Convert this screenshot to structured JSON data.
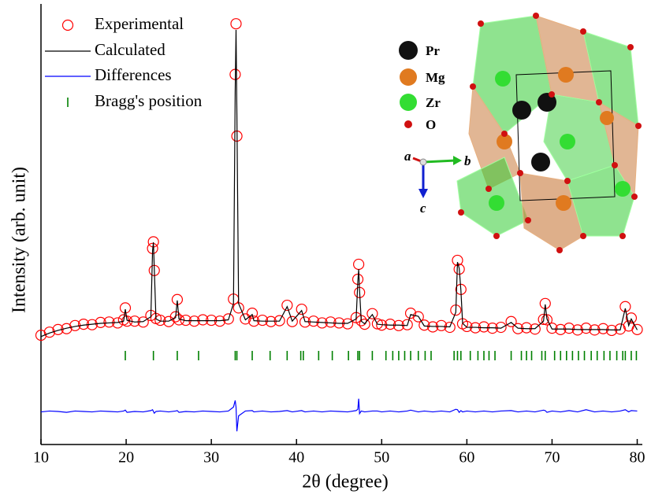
{
  "chart_data": {
    "type": "xrd",
    "xlabel": "2θ (degree)",
    "ylabel": "Intensity (arb. unit)",
    "xlim": [
      10,
      80.6
    ],
    "ylim": [
      0,
      100
    ],
    "xticks": [
      10,
      20,
      30,
      40,
      50,
      60,
      70,
      80
    ],
    "legend": "upper left",
    "x": [
      10,
      11,
      12,
      13,
      14,
      15,
      16,
      17,
      18,
      19,
      19.7,
      19.9,
      20.1,
      21,
      22,
      22.9,
      23.1,
      23.2,
      23.3,
      23.5,
      24,
      25,
      25.8,
      26.0,
      26.2,
      27,
      28,
      29,
      30,
      31,
      32,
      32.6,
      32.8,
      32.9,
      33.0,
      33.2,
      34,
      34.8,
      35,
      36,
      37,
      38,
      38.9,
      39.5,
      40.6,
      41,
      42,
      43,
      44,
      45,
      46,
      47.0,
      47.2,
      47.3,
      47.4,
      47.6,
      48,
      48.9,
      49.5,
      50,
      51,
      52,
      53,
      53.4,
      54.3,
      55,
      56,
      57,
      58,
      58.7,
      58.9,
      59.1,
      59.3,
      59.5,
      60,
      61,
      62,
      63,
      64,
      65.2,
      66,
      67,
      68,
      69.0,
      69.2,
      69.4,
      70,
      71,
      72,
      73,
      74,
      75,
      76,
      77,
      78,
      78.6,
      79.0,
      79.3,
      80
    ],
    "series": [
      {
        "name": "Experimental",
        "color": "#ff0000",
        "style": "circle",
        "values": [
          24.8,
          25.5,
          26.1,
          26.3,
          27.0,
          27.3,
          27.2,
          27.7,
          27.8,
          27.6,
          28.3,
          31.0,
          28.0,
          28.0,
          27.8,
          29.3,
          44.5,
          46.0,
          39.5,
          28.6,
          28.2,
          27.9,
          29.0,
          32.9,
          28.3,
          28.2,
          28.0,
          28.3,
          28.2,
          28.0,
          28.5,
          33.0,
          84.0,
          95.5,
          70.0,
          31.0,
          28.5,
          29.8,
          28.0,
          28.2,
          27.9,
          28.1,
          31.6,
          27.9,
          30.7,
          27.8,
          28.0,
          27.6,
          27.8,
          27.6,
          27.4,
          28.8,
          37.5,
          40.9,
          34.5,
          28.1,
          27.3,
          29.7,
          27.4,
          27.1,
          27.3,
          27.0,
          27.2,
          29.8,
          29.0,
          27.1,
          26.7,
          27.0,
          26.6,
          30.5,
          41.8,
          39.8,
          35.2,
          27.4,
          26.8,
          26.5,
          26.7,
          26.4,
          26.6,
          27.9,
          26.3,
          26.5,
          26.2,
          28.4,
          32.0,
          28.3,
          26.4,
          26.1,
          26.4,
          26.0,
          26.4,
          26.0,
          26.3,
          25.9,
          26.2,
          31.3,
          26.9,
          28.7,
          26.1
        ]
      },
      {
        "name": "Calculated",
        "color": "#000000",
        "style": "line",
        "values": [
          24.5,
          25.3,
          25.9,
          26.4,
          26.8,
          27.1,
          27.3,
          27.5,
          27.6,
          27.7,
          28.0,
          30.7,
          28.2,
          27.8,
          27.9,
          29.0,
          44.0,
          45.9,
          40.0,
          28.5,
          28.0,
          28.0,
          28.8,
          32.7,
          28.5,
          28.1,
          28.1,
          28.1,
          28.1,
          28.1,
          28.3,
          32.0,
          80.0,
          94.1,
          75.0,
          32.0,
          28.3,
          29.5,
          28.1,
          28.0,
          28.0,
          28.0,
          31.3,
          28.0,
          30.4,
          27.9,
          27.8,
          27.7,
          27.6,
          27.5,
          27.5,
          28.5,
          37.0,
          39.8,
          35.0,
          28.0,
          27.4,
          29.5,
          27.3,
          27.2,
          27.1,
          27.1,
          27.0,
          29.5,
          29.1,
          26.9,
          26.8,
          26.8,
          26.7,
          30.0,
          41.4,
          40.0,
          35.0,
          27.5,
          26.6,
          26.6,
          26.5,
          26.5,
          26.4,
          27.7,
          26.4,
          26.3,
          26.3,
          28.0,
          31.8,
          28.5,
          26.2,
          26.2,
          26.2,
          26.1,
          26.1,
          26.1,
          26.1,
          26.0,
          26.0,
          30.9,
          27.0,
          28.5,
          26.0
        ]
      },
      {
        "name": "Differences",
        "color": "#0000ff",
        "style": "line",
        "values": [
          7.4,
          7.6,
          7.5,
          7.3,
          7.6,
          7.5,
          7.4,
          7.6,
          7.5,
          7.4,
          7.6,
          7.8,
          7.3,
          7.5,
          7.4,
          7.7,
          7.9,
          7.5,
          7.1,
          7.5,
          7.6,
          7.4,
          7.6,
          7.7,
          7.3,
          7.5,
          7.4,
          7.6,
          7.5,
          7.4,
          7.6,
          8.5,
          10.0,
          8.5,
          3.0,
          6.5,
          7.6,
          7.7,
          7.4,
          7.6,
          7.4,
          7.5,
          7.7,
          7.4,
          7.7,
          7.4,
          7.6,
          7.4,
          7.6,
          7.5,
          7.4,
          7.7,
          8.0,
          10.4,
          7.0,
          7.6,
          7.4,
          7.6,
          7.6,
          7.4,
          7.6,
          7.4,
          7.6,
          7.8,
          7.4,
          7.6,
          7.4,
          7.6,
          7.4,
          8.0,
          7.9,
          7.3,
          7.7,
          7.4,
          7.6,
          7.4,
          7.6,
          7.4,
          7.6,
          7.7,
          7.4,
          7.6,
          7.4,
          7.8,
          7.7,
          7.3,
          7.6,
          7.4,
          7.7,
          7.4,
          7.9,
          7.4,
          7.6,
          7.4,
          7.6,
          7.9,
          7.4,
          7.7,
          7.6
        ]
      },
      {
        "name": "Bragg's position",
        "color": "#008000",
        "style": "bragg",
        "positions": [
          19.9,
          23.2,
          26.0,
          28.5,
          32.8,
          33.0,
          34.8,
          36.9,
          38.9,
          40.5,
          40.8,
          42.6,
          44.2,
          46.1,
          47.2,
          47.4,
          48.9,
          50.5,
          51.3,
          52.0,
          52.7,
          53.4,
          54.3,
          55.1,
          55.8,
          58.5,
          58.9,
          59.3,
          60.4,
          61.3,
          62.0,
          62.6,
          63.3,
          65.2,
          66.4,
          67.0,
          67.6,
          68.8,
          69.2,
          70.3,
          71.0,
          71.7,
          72.4,
          73.1,
          73.8,
          74.6,
          75.3,
          76.1,
          76.8,
          77.6,
          78.3,
          78.6,
          79.3,
          79.9
        ]
      }
    ]
  },
  "inset": {
    "legend": [
      "Pr",
      "Mg",
      "Zr",
      "O"
    ],
    "axes": [
      "a",
      "b",
      "c"
    ]
  }
}
